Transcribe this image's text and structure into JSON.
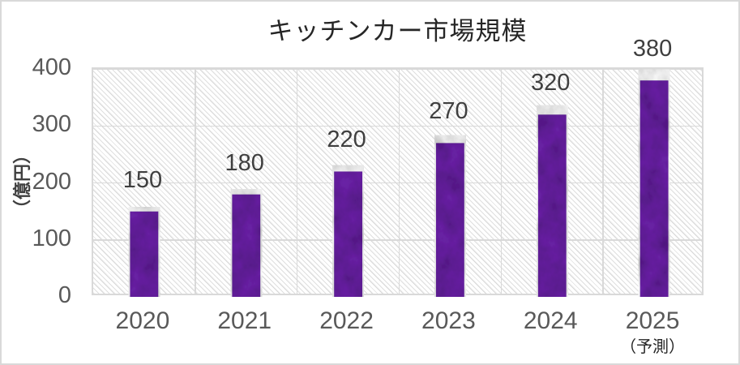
{
  "chart_data": {
    "type": "bar",
    "title": "キッチンカー市場規模",
    "categories": [
      "2020",
      "2021",
      "2022",
      "2023",
      "2024",
      "2025"
    ],
    "category_sublabels": [
      "",
      "",
      "",
      "",
      "",
      "（予測）"
    ],
    "values": [
      150,
      180,
      220,
      270,
      320,
      380
    ],
    "data_labels": [
      "150",
      "180",
      "220",
      "270",
      "320",
      "380"
    ],
    "xlabel": "",
    "ylabel": "（億円）",
    "ylim": [
      0,
      400
    ],
    "yticks": [
      0,
      100,
      200,
      300,
      400
    ],
    "grid": true,
    "legend": "none",
    "plot_bg_pattern": "light-diagonal-hatch",
    "bar_texture": "mottled-dark-purple",
    "colors": {
      "bar_base": "#6b21a8",
      "bar_dark": "#35094f",
      "grid": "#d9d9d9",
      "axis_label": "#595959",
      "data_label": "#3f3f3f",
      "title": "#262626",
      "hatch": "#c9c9c9",
      "background": "#ffffff"
    }
  }
}
